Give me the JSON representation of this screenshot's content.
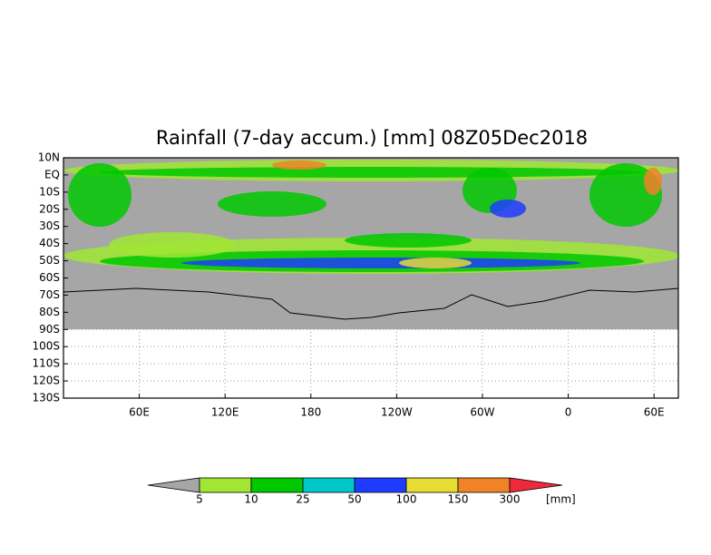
{
  "map": {
    "title": "Rainfall (7-day accum.) [mm] 08Z05Dec2018",
    "ylim": [
      10,
      -130
    ],
    "xlim": [
      7,
      437
    ],
    "lat_ticks": [
      {
        "value": 10,
        "label": "10N"
      },
      {
        "value": 0,
        "label": "EQ"
      },
      {
        "value": -10,
        "label": "10S"
      },
      {
        "value": -20,
        "label": "20S"
      },
      {
        "value": -30,
        "label": "30S"
      },
      {
        "value": -40,
        "label": "40S"
      },
      {
        "value": -50,
        "label": "50S"
      },
      {
        "value": -60,
        "label": "60S"
      },
      {
        "value": -70,
        "label": "70S"
      },
      {
        "value": -80,
        "label": "80S"
      },
      {
        "value": -90,
        "label": "90S"
      },
      {
        "value": -100,
        "label": "100S"
      },
      {
        "value": -110,
        "label": "110S"
      },
      {
        "value": -120,
        "label": "120S"
      },
      {
        "value": -130,
        "label": "130S"
      }
    ],
    "lon_ticks": [
      {
        "value": 60,
        "label": "60E"
      },
      {
        "value": 120,
        "label": "120E"
      },
      {
        "value": 180,
        "label": "180"
      },
      {
        "value": 240,
        "label": "120W"
      },
      {
        "value": 300,
        "label": "60W"
      },
      {
        "value": 360,
        "label": "0"
      },
      {
        "value": 420,
        "label": "60E"
      }
    ],
    "colorbar": {
      "levels": [
        5,
        10,
        25,
        50,
        100,
        150,
        300
      ],
      "colors": [
        "#a6a6a6",
        "#a0e632",
        "#00c800",
        "#00c8c8",
        "#1e3cff",
        "#e6dc32",
        "#f08228",
        "#f0283c"
      ],
      "unit": "[mm]"
    }
  }
}
